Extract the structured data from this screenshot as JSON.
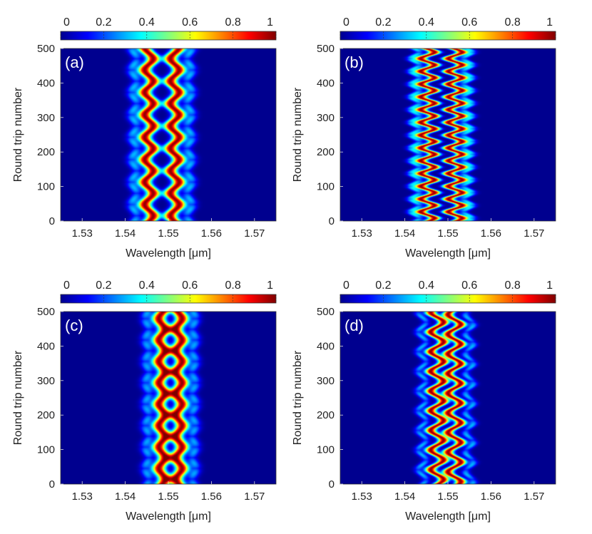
{
  "figure": {
    "colormap": "jet",
    "colormap_stops": [
      "#00008f",
      "#0000ff",
      "#0080ff",
      "#00ffff",
      "#80ff80",
      "#ffff00",
      "#ff8000",
      "#ff0000",
      "#800000"
    ],
    "background_color": "#00008f"
  },
  "chart_data": [
    {
      "type": "heatmap",
      "panel_label": "(a)",
      "xlabel": "Wavelength [μm]",
      "ylabel": "Round trip number",
      "xlim": [
        1.525,
        1.575
      ],
      "ylim": [
        0,
        500
      ],
      "xticks": [
        1.53,
        1.54,
        1.55,
        1.56,
        1.57
      ],
      "xtick_labels": [
        "1.53",
        "1.54",
        "1.55",
        "1.56",
        "1.57"
      ],
      "yticks": [
        0,
        100,
        200,
        300,
        400,
        500
      ],
      "ytick_labels": [
        "0",
        "100",
        "200",
        "300",
        "400",
        "500"
      ],
      "colorbar": {
        "range": [
          0,
          1
        ],
        "ticks": [
          0,
          0.2,
          0.4,
          0.6,
          0.8,
          1
        ],
        "tick_labels": [
          "0",
          "0.2",
          "0.4",
          "0.6",
          "0.8",
          "1"
        ]
      },
      "field": {
        "center_um": 1.5485,
        "lobe_offset_um": 0.003,
        "lobe_width_um": 0.0011,
        "wiggle_amplitude_um": 0.001,
        "period_round_trips": 65,
        "phase_shift": 3.14,
        "halo_offset_um": 0.0065,
        "halo_strength": 0.3
      }
    },
    {
      "type": "heatmap",
      "panel_label": "(b)",
      "xlabel": "Wavelength [μm]",
      "ylabel": "Round trip number",
      "xlim": [
        1.525,
        1.575
      ],
      "ylim": [
        0,
        500
      ],
      "xticks": [
        1.53,
        1.54,
        1.55,
        1.56,
        1.57
      ],
      "xtick_labels": [
        "1.53",
        "1.54",
        "1.55",
        "1.56",
        "1.57"
      ],
      "yticks": [
        0,
        100,
        200,
        300,
        400,
        500
      ],
      "ytick_labels": [
        "0",
        "100",
        "200",
        "300",
        "400",
        "500"
      ],
      "colorbar": {
        "range": [
          0,
          1
        ],
        "ticks": [
          0,
          0.2,
          0.4,
          0.6,
          0.8,
          1
        ],
        "tick_labels": [
          "0",
          "0.2",
          "0.4",
          "0.6",
          "0.8",
          "1"
        ]
      },
      "field": {
        "center_um": 1.5485,
        "lobe_offset_um": 0.0032,
        "lobe_width_um": 0.001,
        "wiggle_amplitude_um": 0.0016,
        "period_round_trips": 37,
        "phase_shift": 0,
        "halo_offset_um": 0.0062,
        "halo_strength": 0.35
      }
    },
    {
      "type": "heatmap",
      "panel_label": "(c)",
      "xlabel": "Wavelength [μm]",
      "ylabel": "Round trip number",
      "xlim": [
        1.525,
        1.575
      ],
      "ylim": [
        0,
        500
      ],
      "xticks": [
        1.53,
        1.54,
        1.55,
        1.56,
        1.57
      ],
      "xtick_labels": [
        "1.53",
        "1.54",
        "1.55",
        "1.56",
        "1.57"
      ],
      "yticks": [
        0,
        100,
        200,
        300,
        400,
        500
      ],
      "ytick_labels": [
        "0",
        "100",
        "200",
        "300",
        "400",
        "500"
      ],
      "colorbar": {
        "range": [
          0,
          1
        ],
        "ticks": [
          0,
          0.2,
          0.4,
          0.6,
          0.8,
          1
        ],
        "tick_labels": [
          "0",
          "0.2",
          "0.4",
          "0.6",
          "0.8",
          "1"
        ]
      },
      "field": {
        "center_um": 1.5505,
        "lobe_offset_um": 0.002,
        "lobe_width_um": 0.0011,
        "wiggle_amplitude_um": 0.0007,
        "period_round_trips": 62,
        "phase_shift": 3.14,
        "halo_offset_um": 0.0055,
        "halo_strength": 0.28
      }
    },
    {
      "type": "heatmap",
      "panel_label": "(d)",
      "xlabel": "Wavelength [μm]",
      "ylabel": "Round trip number",
      "xlim": [
        1.525,
        1.575
      ],
      "ylim": [
        0,
        500
      ],
      "xticks": [
        1.53,
        1.54,
        1.55,
        1.56,
        1.57
      ],
      "xtick_labels": [
        "1.53",
        "1.54",
        "1.55",
        "1.56",
        "1.57"
      ],
      "yticks": [
        0,
        100,
        200,
        300,
        400,
        500
      ],
      "ytick_labels": [
        "0",
        "100",
        "200",
        "300",
        "400",
        "500"
      ],
      "colorbar": {
        "range": [
          0,
          1
        ],
        "ticks": [
          0,
          0.2,
          0.4,
          0.6,
          0.8,
          1
        ],
        "tick_labels": [
          "0",
          "0.2",
          "0.4",
          "0.6",
          "0.8",
          "1"
        ]
      },
      "field": {
        "center_um": 1.5495,
        "lobe_offset_um": 0.002,
        "lobe_width_um": 0.0009,
        "wiggle_amplitude_um": 0.0015,
        "period_round_trips": 57,
        "phase_shift": 0.7,
        "halo_offset_um": 0.0055,
        "halo_strength": 0.3
      }
    }
  ]
}
